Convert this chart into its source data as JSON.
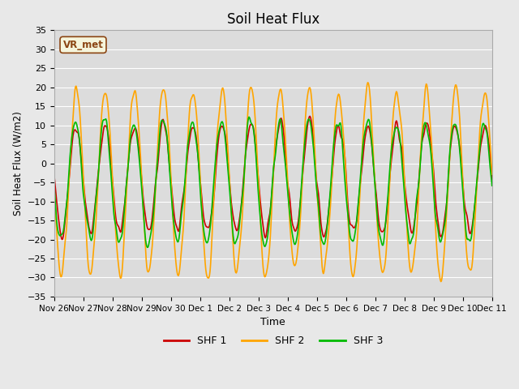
{
  "title": "Soil Heat Flux",
  "ylabel": "Soil Heat Flux (W/m2)",
  "xlabel": "Time",
  "ylim": [
    -35,
    35
  ],
  "yticks": [
    -35,
    -30,
    -25,
    -20,
    -15,
    -10,
    -5,
    0,
    5,
    10,
    15,
    20,
    25,
    30,
    35
  ],
  "background_color": "#e8e8e8",
  "plot_bg_color": "#dcdcdc",
  "grid_color": "#ffffff",
  "line_colors": {
    "SHF 1": "#cc0000",
    "SHF 2": "#ffa500",
    "SHF 3": "#00bb00"
  },
  "line_widths": {
    "SHF 1": 1.2,
    "SHF 2": 1.2,
    "SHF 3": 1.2
  },
  "legend_label": "VR_met",
  "xtick_labels": [
    "Nov 26",
    "Nov 27",
    "Nov 28",
    "Nov 29",
    "Nov 30",
    "Dec 1",
    "Dec 2",
    "Dec 3",
    "Dec 4",
    "Dec 5",
    "Dec 6",
    "Dec 7",
    "Dec 8",
    "Dec 9",
    "Dec 10",
    "Dec 11"
  ],
  "n_days": 15,
  "points_per_day": 48
}
